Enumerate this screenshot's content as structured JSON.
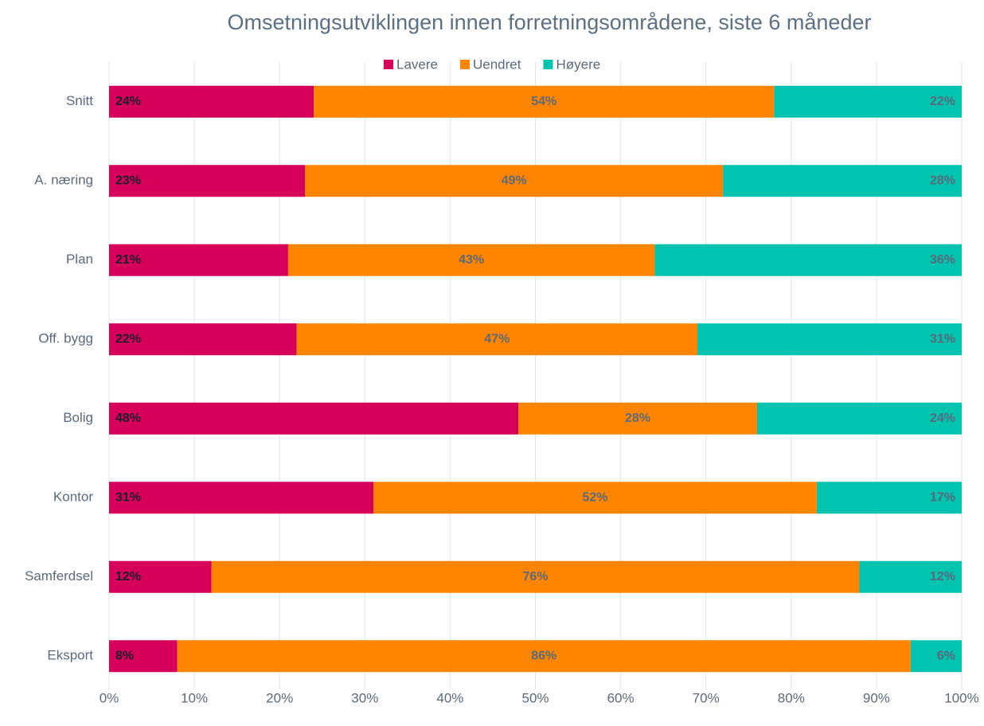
{
  "chart_data": {
    "type": "stacked_barh",
    "title": "Omsetningsutviklingen innen forretningsområdene, siste 6 måneder",
    "categories": [
      "Snitt",
      "A. næring",
      "Plan",
      "Off. bygg",
      "Bolig",
      "Kontor",
      "Samferdsel",
      "Eksport"
    ],
    "series": [
      {
        "name": "Lavere",
        "color": "#d6005a",
        "values": [
          24,
          23,
          21,
          22,
          48,
          31,
          12,
          8
        ],
        "value_labels": [
          "24%",
          "23%",
          "21%",
          "22%",
          "48%",
          "31%",
          "12%",
          "8%"
        ]
      },
      {
        "name": "Uendret",
        "color": "#ff8500",
        "values": [
          54,
          49,
          43,
          47,
          28,
          52,
          76,
          86
        ],
        "value_labels": [
          "54%",
          "49%",
          "43%",
          "47%",
          "28%",
          "52%",
          "76%",
          "86%"
        ]
      },
      {
        "name": "Høyere",
        "color": "#00c3b0",
        "values": [
          22,
          28,
          36,
          31,
          24,
          17,
          12,
          6
        ],
        "value_labels": [
          "22%",
          "28%",
          "36%",
          "31%",
          "24%",
          "17%",
          "12%",
          "6%"
        ]
      }
    ],
    "xlim": [
      0,
      100
    ],
    "xticks": [
      {
        "value": 0,
        "label": "0%"
      },
      {
        "value": 10,
        "label": "10%"
      },
      {
        "value": 20,
        "label": "20%"
      },
      {
        "value": 30,
        "label": "30%"
      },
      {
        "value": 40,
        "label": "40%"
      },
      {
        "value": 50,
        "label": "50%"
      },
      {
        "value": 60,
        "label": "60%"
      },
      {
        "value": 70,
        "label": "70%"
      },
      {
        "value": 80,
        "label": "80%"
      },
      {
        "value": 90,
        "label": "90%"
      },
      {
        "value": 100,
        "label": "100%"
      }
    ],
    "grid": true,
    "legend": "top"
  }
}
